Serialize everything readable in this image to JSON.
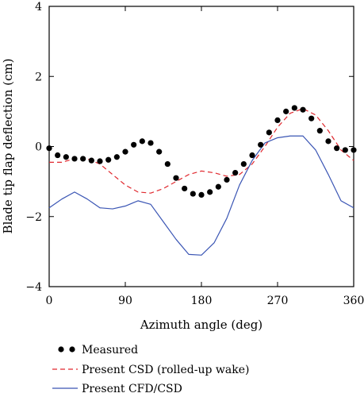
{
  "chart_data": {
    "type": "line",
    "title": "",
    "xlabel": "Azimuth angle (deg)",
    "ylabel": "Blade tip flap deflection (cm)",
    "xlim": [
      0,
      360
    ],
    "ylim": [
      -4,
      4
    ],
    "xticks": [
      0,
      90,
      180,
      270,
      360
    ],
    "yticks": [
      4,
      2,
      0,
      -2,
      -4
    ],
    "xtick_labels": [
      "0",
      "90",
      "180",
      "270",
      "360"
    ],
    "ytick_labels": [
      "4",
      "2",
      "0",
      "−2",
      "−4"
    ],
    "grid": false,
    "legend_position": "bottom",
    "series": [
      {
        "name": "Measured",
        "style": "markers",
        "color": "#000000",
        "x": [
          0,
          10,
          20,
          30,
          40,
          50,
          60,
          70,
          80,
          90,
          100,
          110,
          120,
          130,
          140,
          150,
          160,
          170,
          180,
          190,
          200,
          210,
          220,
          230,
          240,
          250,
          260,
          270,
          280,
          290,
          300,
          310,
          320,
          330,
          340,
          350,
          360
        ],
        "y": [
          -0.05,
          -0.25,
          -0.3,
          -0.35,
          -0.35,
          -0.4,
          -0.42,
          -0.38,
          -0.3,
          -0.15,
          0.05,
          0.15,
          0.1,
          -0.15,
          -0.5,
          -0.9,
          -1.2,
          -1.35,
          -1.38,
          -1.3,
          -1.15,
          -0.95,
          -0.75,
          -0.5,
          -0.25,
          0.05,
          0.4,
          0.75,
          1.0,
          1.1,
          1.05,
          0.8,
          0.45,
          0.15,
          -0.05,
          -0.1,
          -0.1
        ]
      },
      {
        "name": "Present CSD (rolled-up wake)",
        "style": "dashed",
        "color": "#e0282e",
        "x": [
          0,
          15,
          30,
          45,
          60,
          75,
          90,
          105,
          120,
          135,
          150,
          165,
          180,
          195,
          210,
          225,
          240,
          255,
          270,
          285,
          300,
          315,
          330,
          345,
          360
        ],
        "y": [
          -0.45,
          -0.45,
          -0.35,
          -0.35,
          -0.5,
          -0.8,
          -1.1,
          -1.3,
          -1.33,
          -1.2,
          -1.0,
          -0.8,
          -0.7,
          -0.75,
          -0.85,
          -0.8,
          -0.5,
          0.0,
          0.55,
          0.95,
          1.08,
          0.9,
          0.45,
          -0.1,
          -0.4
        ]
      },
      {
        "name": "Present CFD/CSD",
        "style": "solid",
        "color": "#3a55b4",
        "x": [
          0,
          15,
          30,
          45,
          60,
          75,
          90,
          105,
          120,
          135,
          150,
          165,
          180,
          195,
          210,
          225,
          240,
          255,
          270,
          285,
          300,
          315,
          330,
          345,
          360
        ],
        "y": [
          -1.75,
          -1.5,
          -1.3,
          -1.5,
          -1.75,
          -1.78,
          -1.7,
          -1.55,
          -1.65,
          -2.15,
          -2.65,
          -3.08,
          -3.1,
          -2.75,
          -2.05,
          -1.1,
          -0.4,
          0.1,
          0.25,
          0.3,
          0.3,
          -0.1,
          -0.8,
          -1.55,
          -1.75
        ]
      }
    ]
  }
}
